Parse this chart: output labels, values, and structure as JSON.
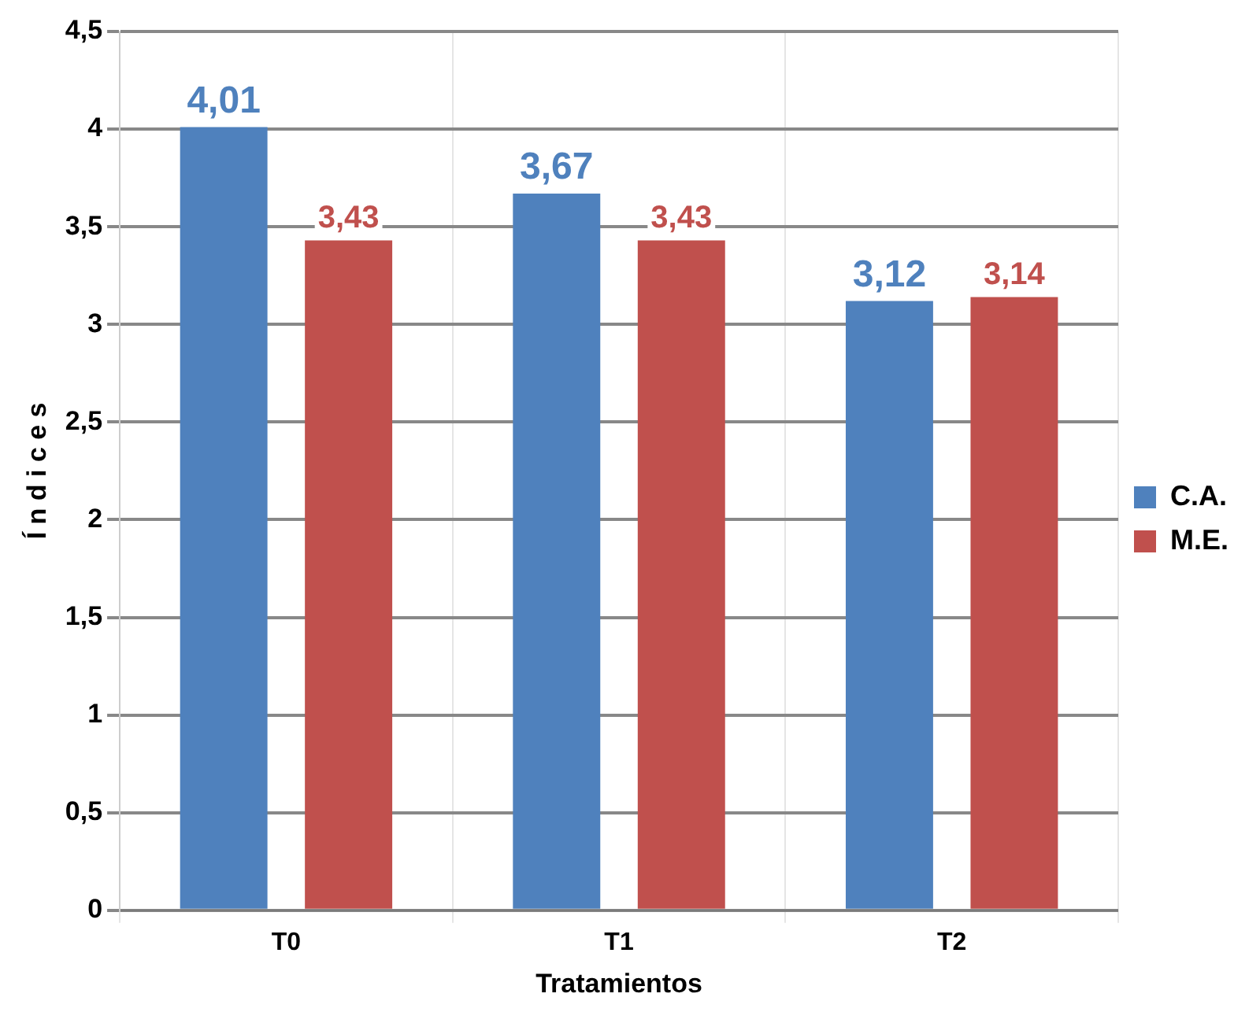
{
  "chart_data": {
    "type": "bar",
    "xlabel": "Tratamientos",
    "ylabel": "Í n d i c e s",
    "categories": [
      "T0",
      "T1",
      "T2"
    ],
    "series": [
      {
        "name": "C.A.",
        "color": "#4f81bd",
        "values": [
          4.01,
          3.67,
          3.12
        ],
        "value_labels": [
          "4,01",
          "3,67",
          "3,12"
        ]
      },
      {
        "name": "M.E.",
        "color": "#c0504d",
        "values": [
          3.43,
          3.43,
          3.14
        ],
        "value_labels": [
          "3,43",
          "3,43",
          "3,14"
        ]
      }
    ],
    "ylim": [
      0,
      4.5
    ],
    "yticks": [
      0,
      {
        "value": 0.5,
        "label": "0,5"
      },
      1,
      {
        "value": 1.5,
        "label": "1,5"
      },
      2,
      {
        "value": 2.5,
        "label": "2,5"
      },
      3,
      {
        "value": 3.5,
        "label": "3,5"
      },
      4,
      {
        "value": 4.5,
        "label": "4,5"
      }
    ],
    "grid": true,
    "legend": "right"
  }
}
